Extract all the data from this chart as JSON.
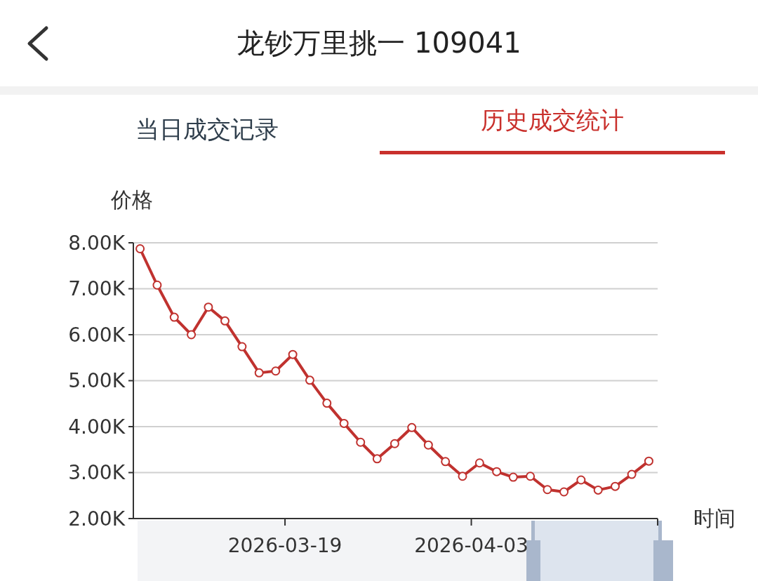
{
  "chart_data": {
    "type": "line",
    "title": "龙钞万里挑一 109041",
    "annotations": [
      "当日成交记录",
      "历史成交统计"
    ],
    "ylabel": "价格",
    "xlabel": "时间",
    "x": [
      "2026-03-07T08:00",
      "2026-03-08T17:00",
      "2026-03-10T02:00",
      "2026-03-11T11:00",
      "2026-03-12T20:00",
      "2026-03-14T04:00",
      "2026-03-15T13:00",
      "2026-03-16T22:00",
      "2026-03-18T06:00",
      "2026-03-19T15:00",
      "2026-03-21T00:00",
      "2026-03-22T09:00",
      "2026-03-23T18:00",
      "2026-03-25T02:00",
      "2026-03-26T10:00",
      "2026-03-27T20:00",
      "2026-03-29T05:00",
      "2026-03-30T13:00",
      "2026-03-31T22:00",
      "2026-04-02T07:00",
      "2026-04-03T16:00",
      "2026-04-05T01:00",
      "2026-04-06T09:00",
      "2026-04-07T18:00",
      "2026-04-09T03:00",
      "2026-04-10T11:00",
      "2026-04-11T20:00",
      "2026-04-13T05:00",
      "2026-04-14T14:00",
      "2026-04-15T22:00",
      "2026-04-17T07:00"
    ],
    "series": [
      {
        "color": "#c0322f",
        "values": [
          7870,
          7080,
          6380,
          6000,
          6600,
          6300,
          5740,
          5170,
          5210,
          5570,
          5010,
          4510,
          4070,
          3660,
          3300,
          3630,
          3980,
          3600,
          3240,
          2920,
          3210,
          3020,
          2900,
          2920,
          2630,
          2580,
          2840,
          2620,
          2700,
          2960,
          3250
        ]
      }
    ],
    "xlim": [
      "2026-03-06T19:00",
      "2026-04-18"
    ],
    "xticks": [
      {
        "value": "2026-03-19",
        "label": "2026-03-19"
      },
      {
        "value": "2026-04-03",
        "label": "2026-04-03"
      },
      {
        "value": "2026-04-18",
        "label": null
      }
    ],
    "ylim": [
      2000,
      8000
    ],
    "yticks": [
      {
        "value": 2000,
        "label": "2.00K"
      },
      {
        "value": 3000,
        "label": "3.00K"
      },
      {
        "value": 4000,
        "label": "4.00K"
      },
      {
        "value": 5000,
        "label": "5.00K"
      },
      {
        "value": 6000,
        "label": "6.00K"
      },
      {
        "value": 7000,
        "label": "7.00K"
      },
      {
        "value": 8000,
        "label": "8.00K"
      }
    ],
    "grid": "y",
    "marker": "circle",
    "line_style": "solid"
  }
}
